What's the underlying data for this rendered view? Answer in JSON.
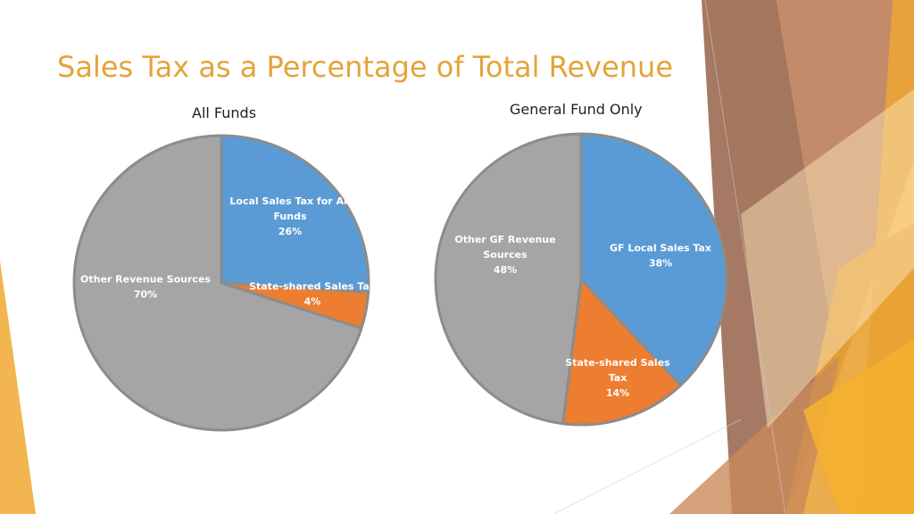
{
  "title": "Sales Tax as a Percentage of Total Revenue",
  "colors": {
    "title": "#e5a33a",
    "local_sales_tax": "#5b9bd5",
    "state_shared": "#ed7d31",
    "other": "#a5a5a5"
  },
  "chart_data": [
    {
      "type": "pie",
      "title": "All Funds",
      "slices": [
        {
          "label_lines": [
            "Local Sales Tax for All",
            "Funds"
          ],
          "pct_label": "26%",
          "value": 26,
          "color": "#5b9bd5",
          "label_color": "#ffffff"
        },
        {
          "label_lines": [
            "State-shared Sales Tax"
          ],
          "pct_label": "4%",
          "value": 4,
          "color": "#ed7d31",
          "label_color": "#ffffff"
        },
        {
          "label_lines": [
            "Other Revenue Sources"
          ],
          "pct_label": "70%",
          "value": 70,
          "color": "#a5a5a5",
          "label_color": "#ffffff"
        }
      ]
    },
    {
      "type": "pie",
      "title": "General Fund Only",
      "slices": [
        {
          "label_lines": [
            "GF Local Sales Tax"
          ],
          "pct_label": "38%",
          "value": 38,
          "color": "#5b9bd5",
          "label_color": "#ffffff"
        },
        {
          "label_lines": [
            "State-shared Sales",
            "Tax"
          ],
          "pct_label": "14%",
          "value": 14,
          "color": "#ed7d31",
          "label_color": "#ffffff"
        },
        {
          "label_lines": [
            "Other GF Revenue",
            "Sources"
          ],
          "pct_label": "48%",
          "value": 48,
          "color": "#a5a5a5",
          "label_color": "#ffffff"
        }
      ]
    }
  ]
}
